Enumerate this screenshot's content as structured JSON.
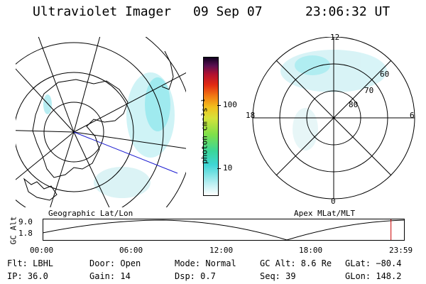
{
  "header": {
    "instrument": "Ultraviolet Imager",
    "date": "09 Sep 07",
    "time": "23:06:32 UT"
  },
  "colorbar": {
    "unit_label": "photon cm⁻²s⁻¹",
    "ticks": [
      "100",
      "10"
    ]
  },
  "geo_map": {
    "label": "Geographic Lat/Lon"
  },
  "apex_map": {
    "label": "Apex MLat/MLT",
    "mlt_labels": {
      "top": "12",
      "bottom": "0",
      "left": "18",
      "right": "6"
    },
    "lat_labels": [
      "60",
      "70",
      "80"
    ]
  },
  "altitude_plot": {
    "axis_label": "GC Alt",
    "y_ticks": [
      "9.0",
      "1.8"
    ],
    "x_ticks": [
      "00:00",
      "06:00",
      "12:00",
      "18:00",
      "23:59"
    ],
    "current_time_fraction": 0.963,
    "marker_color": "#cc0000"
  },
  "status": {
    "filter": "Flt: LBHL",
    "ip": "IP: 36.0",
    "door": "Door: Open",
    "gain": "Gain: 14",
    "mode": "Mode: Normal",
    "dsp": "Dsp:    0.7",
    "gc_alt": "GC Alt: 8.6 Re",
    "seq": "Seq: 39",
    "glat": "GLat: −80.4",
    "glon": "GLon: 148.2"
  }
}
